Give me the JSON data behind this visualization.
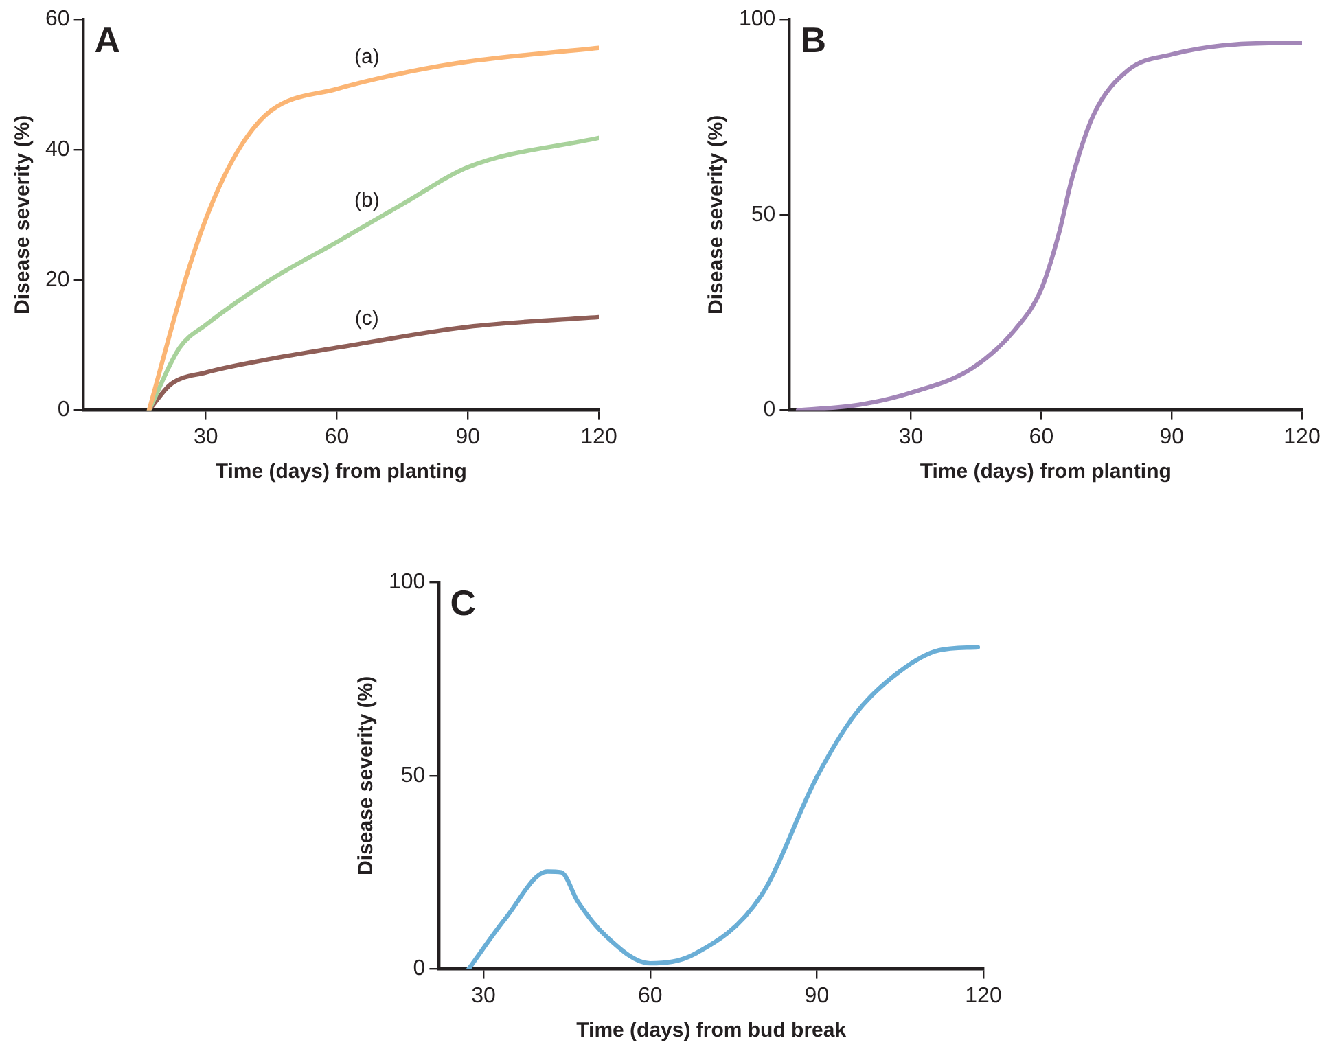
{
  "chart_data": [
    {
      "type": "line",
      "title": "A",
      "xlabel": "Time (days) from planting",
      "ylabel": "Disease severity (%)",
      "xlim": [
        2,
        120
      ],
      "xticks": [
        30,
        60,
        90,
        120
      ],
      "ylim": [
        0,
        60
      ],
      "yticks": [
        0,
        20,
        40,
        60
      ],
      "grid": false,
      "legend": false,
      "marker": "none",
      "line_style": "solid",
      "series": [
        {
          "name": "(a)",
          "color": "#fbb574",
          "x": [
            17,
            26,
            31.6,
            38,
            45,
            60,
            77,
            90,
            120
          ],
          "values": [
            0,
            21.5,
            32,
            40.5,
            46,
            49.3,
            52,
            53.5,
            55.6
          ]
        },
        {
          "name": "(b)",
          "color": "#a8d29b",
          "x": [
            17,
            24,
            30,
            45,
            60,
            76,
            90,
            120
          ],
          "values": [
            0,
            9.6,
            13.1,
            20.1,
            25.8,
            32,
            37.3,
            41.8
          ]
        },
        {
          "name": "(c)",
          "color": "#8f5e57",
          "x": [
            17,
            22,
            30,
            45,
            60,
            90,
            120
          ],
          "values": [
            0,
            4,
            5.8,
            7.9,
            9.6,
            12.8,
            14.3
          ]
        }
      ]
    },
    {
      "type": "line",
      "title": "B",
      "xlabel": "Time (days) from planting",
      "ylabel": "Disease severity (%)",
      "xlim": [
        2,
        120
      ],
      "xticks": [
        30,
        60,
        90,
        120
      ],
      "ylim": [
        0,
        100
      ],
      "yticks": [
        0,
        50,
        100
      ],
      "grid": false,
      "legend": false,
      "marker": "none",
      "line_style": "solid",
      "series": [
        {
          "color": "#a386b8",
          "x": [
            4,
            18,
            30,
            44,
            54,
            60,
            64,
            67,
            72,
            80,
            90,
            105,
            120
          ],
          "values": [
            0,
            1.4,
            4.5,
            10.7,
            20.7,
            31,
            45,
            59,
            75.5,
            87,
            91,
            93.6,
            94
          ]
        }
      ]
    },
    {
      "type": "line",
      "title": "C",
      "xlabel": "Time (days) from bud break",
      "ylabel": "Disease severity (%)",
      "xlim": [
        22,
        120
      ],
      "xticks": [
        30,
        60,
        90,
        120
      ],
      "ylim": [
        0,
        100
      ],
      "yticks": [
        0,
        50,
        100
      ],
      "grid": false,
      "legend": false,
      "marker": "none",
      "line_style": "solid",
      "series": [
        {
          "color": "#6aaed6",
          "x": [
            27.3,
            34,
            41.5,
            44,
            47,
            52,
            60,
            68,
            80,
            90,
            97,
            105,
            112,
            119
          ],
          "values": [
            0,
            13.2,
            25.2,
            25,
            17.4,
            8.6,
            1.5,
            3.9,
            19,
            49.6,
            66,
            77,
            82.4,
            83.2
          ]
        }
      ]
    }
  ]
}
